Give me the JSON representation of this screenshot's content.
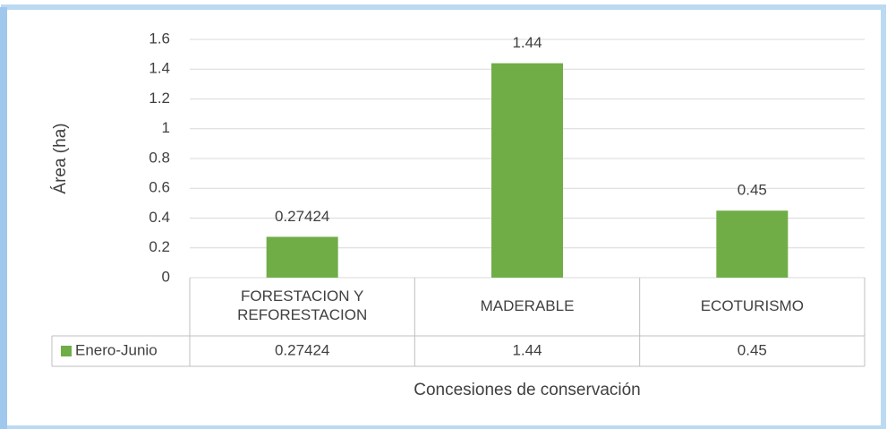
{
  "chart_data": {
    "type": "bar",
    "y_label": "Área (ha)",
    "x_label": "Concesiones de conservación",
    "categories": [
      "FORESTACION Y REFORESTACION",
      "MADERABLE",
      "ECOTURISMO"
    ],
    "series": [
      {
        "name": "Enero-Junio",
        "color": "#70ad47",
        "values": [
          0.27424,
          1.44,
          0.45
        ]
      }
    ],
    "ylim": [
      0,
      1.6
    ],
    "yticks": [
      0,
      0.2,
      0.4,
      0.6,
      0.8,
      1,
      1.2,
      1.4,
      1.6
    ],
    "grid": true,
    "data_table": true
  }
}
